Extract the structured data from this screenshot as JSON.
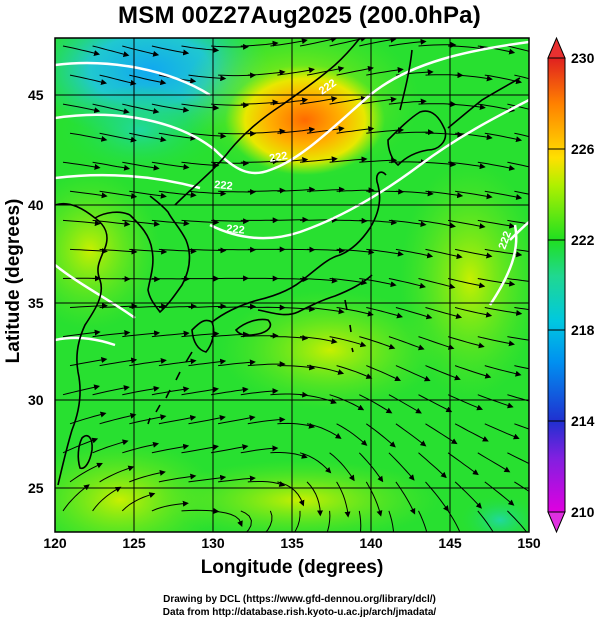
{
  "map": {
    "title": "MSM 00Z27Aug2025 (200.0hPa)",
    "x_axis_label": "Longitude (degrees)",
    "y_axis_label": "Latitude  (degrees)",
    "x_ticks": [
      "120",
      "125",
      "130",
      "135",
      "140",
      "145",
      "150"
    ],
    "y_ticks": [
      "25",
      "30",
      "35",
      "40",
      "45"
    ],
    "lon_range": [
      120,
      150
    ],
    "lat_range": [
      22.4,
      47.6
    ],
    "field": "temperature (K) with wind streamlines",
    "colorbar": {
      "ticks": [
        "230",
        "226",
        "222",
        "218",
        "214",
        "210"
      ],
      "range": [
        210,
        230
      ],
      "colors": [
        "#e000e0",
        "#2030d0",
        "#00c8f0",
        "#20d080",
        "#20e020",
        "#d0f000",
        "#ffd000",
        "#ff7000",
        "#e02020"
      ]
    },
    "contour_labels": [
      "222",
      "222",
      "222",
      "222",
      "222"
    ],
    "coast_color": "#000000",
    "contour_color": "#ffffff"
  },
  "footer": {
    "credit_line1": "Drawing by DCL (https://www.gfd-dennou.org/library/dcl/)",
    "credit_line2": "Data from http://database.rish.kyoto-u.ac.jp/arch/jmadata/"
  }
}
